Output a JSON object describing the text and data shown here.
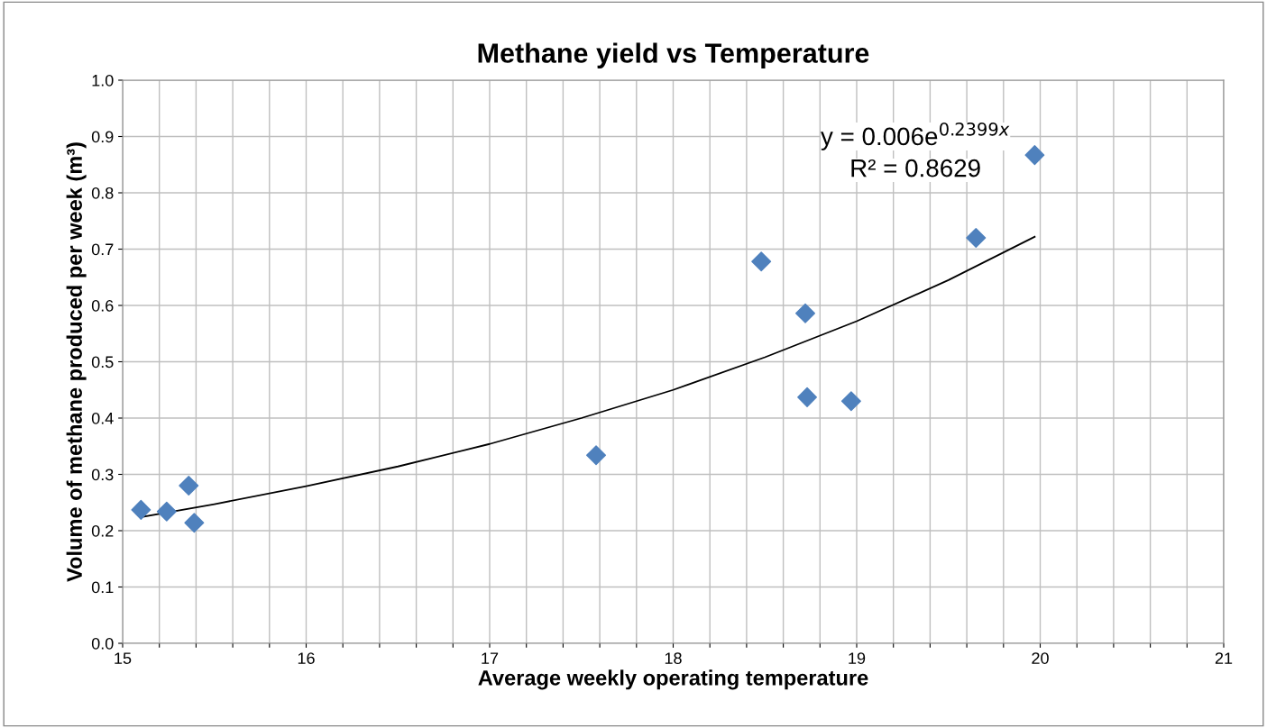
{
  "chart_data": {
    "type": "scatter",
    "title": "Methane yield vs Temperature",
    "xlabel": "Average weekly operating temperature",
    "ylabel": "Volume of methane produced per week (m³)",
    "series": [
      {
        "type": "scatter",
        "color": "#4f81bd",
        "marker": "diamond",
        "x": [
          15.1,
          15.24,
          15.36,
          15.39,
          17.58,
          18.48,
          18.72,
          18.73,
          18.97,
          19.65,
          19.97
        ],
        "values": [
          0.237,
          0.234,
          0.28,
          0.214,
          0.334,
          0.678,
          0.586,
          0.437,
          0.43,
          0.72,
          0.867
        ]
      },
      {
        "type": "line",
        "color": "#000000",
        "marker": "none",
        "line_style": "solid",
        "x": [
          15.1,
          15.5,
          16,
          16.5,
          17,
          17.5,
          18,
          18.5,
          19,
          19.5,
          19.97
        ],
        "values": [
          0.224,
          0.247,
          0.279,
          0.314,
          0.354,
          0.4,
          0.45,
          0.508,
          0.572,
          0.645,
          0.722
        ]
      }
    ],
    "annotations": [
      "y = 0.006e$^{0.2399x}$",
      "R² = 0.8629"
    ],
    "xlim": [
      15,
      21
    ],
    "xticks": [
      15,
      {
        "value": 15.2,
        "label": null
      },
      {
        "value": 15.4,
        "label": null
      },
      {
        "value": 15.6,
        "label": null
      },
      {
        "value": 15.8,
        "label": null
      },
      16,
      {
        "value": 16.2,
        "label": null
      },
      {
        "value": 16.4,
        "label": null
      },
      {
        "value": 16.6,
        "label": null
      },
      {
        "value": 16.8,
        "label": null
      },
      17,
      {
        "value": 17.2,
        "label": null
      },
      {
        "value": 17.4,
        "label": null
      },
      {
        "value": 17.6,
        "label": null
      },
      {
        "value": 17.8,
        "label": null
      },
      18,
      {
        "value": 18.2,
        "label": null
      },
      {
        "value": 18.4,
        "label": null
      },
      {
        "value": 18.6,
        "label": null
      },
      {
        "value": 18.8,
        "label": null
      },
      19,
      {
        "value": 19.2,
        "label": null
      },
      {
        "value": 19.4,
        "label": null
      },
      {
        "value": 19.6,
        "label": null
      },
      {
        "value": 19.8,
        "label": null
      },
      20,
      {
        "value": 20.2,
        "label": null
      },
      {
        "value": 20.4,
        "label": null
      },
      {
        "value": 20.6,
        "label": null
      },
      {
        "value": 20.8,
        "label": null
      },
      21
    ],
    "ylim": [
      0,
      1
    ],
    "yticks": [
      {
        "value": 0,
        "label": "0.0"
      },
      0.1,
      0.2,
      0.3,
      0.4,
      0.5,
      0.6,
      0.7,
      0.8,
      0.9,
      {
        "value": 1,
        "label": "1.0"
      }
    ],
    "grid": true,
    "legend": false
  }
}
